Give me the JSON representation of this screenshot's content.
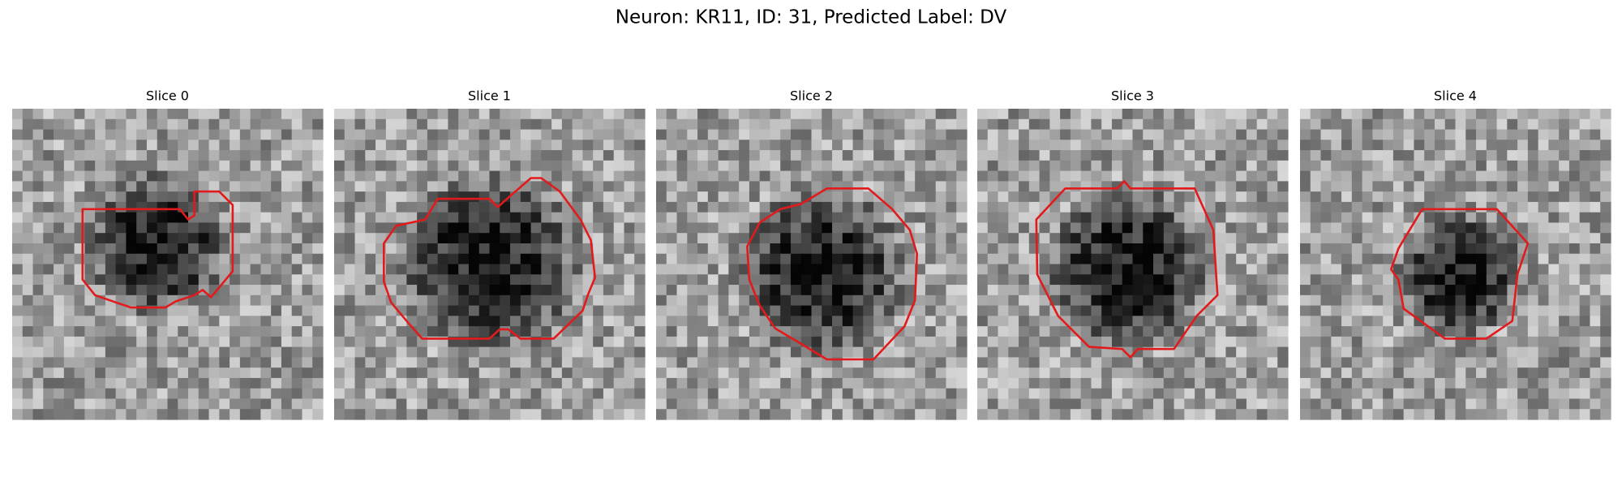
{
  "figure": {
    "title": "Neuron: KR11, ID: 31, Predicted Label: DV",
    "panels": [
      {
        "title": "Slice 0"
      },
      {
        "title": "Slice 1"
      },
      {
        "title": "Slice 2"
      },
      {
        "title": "Slice 3"
      },
      {
        "title": "Slice 4"
      }
    ]
  }
}
